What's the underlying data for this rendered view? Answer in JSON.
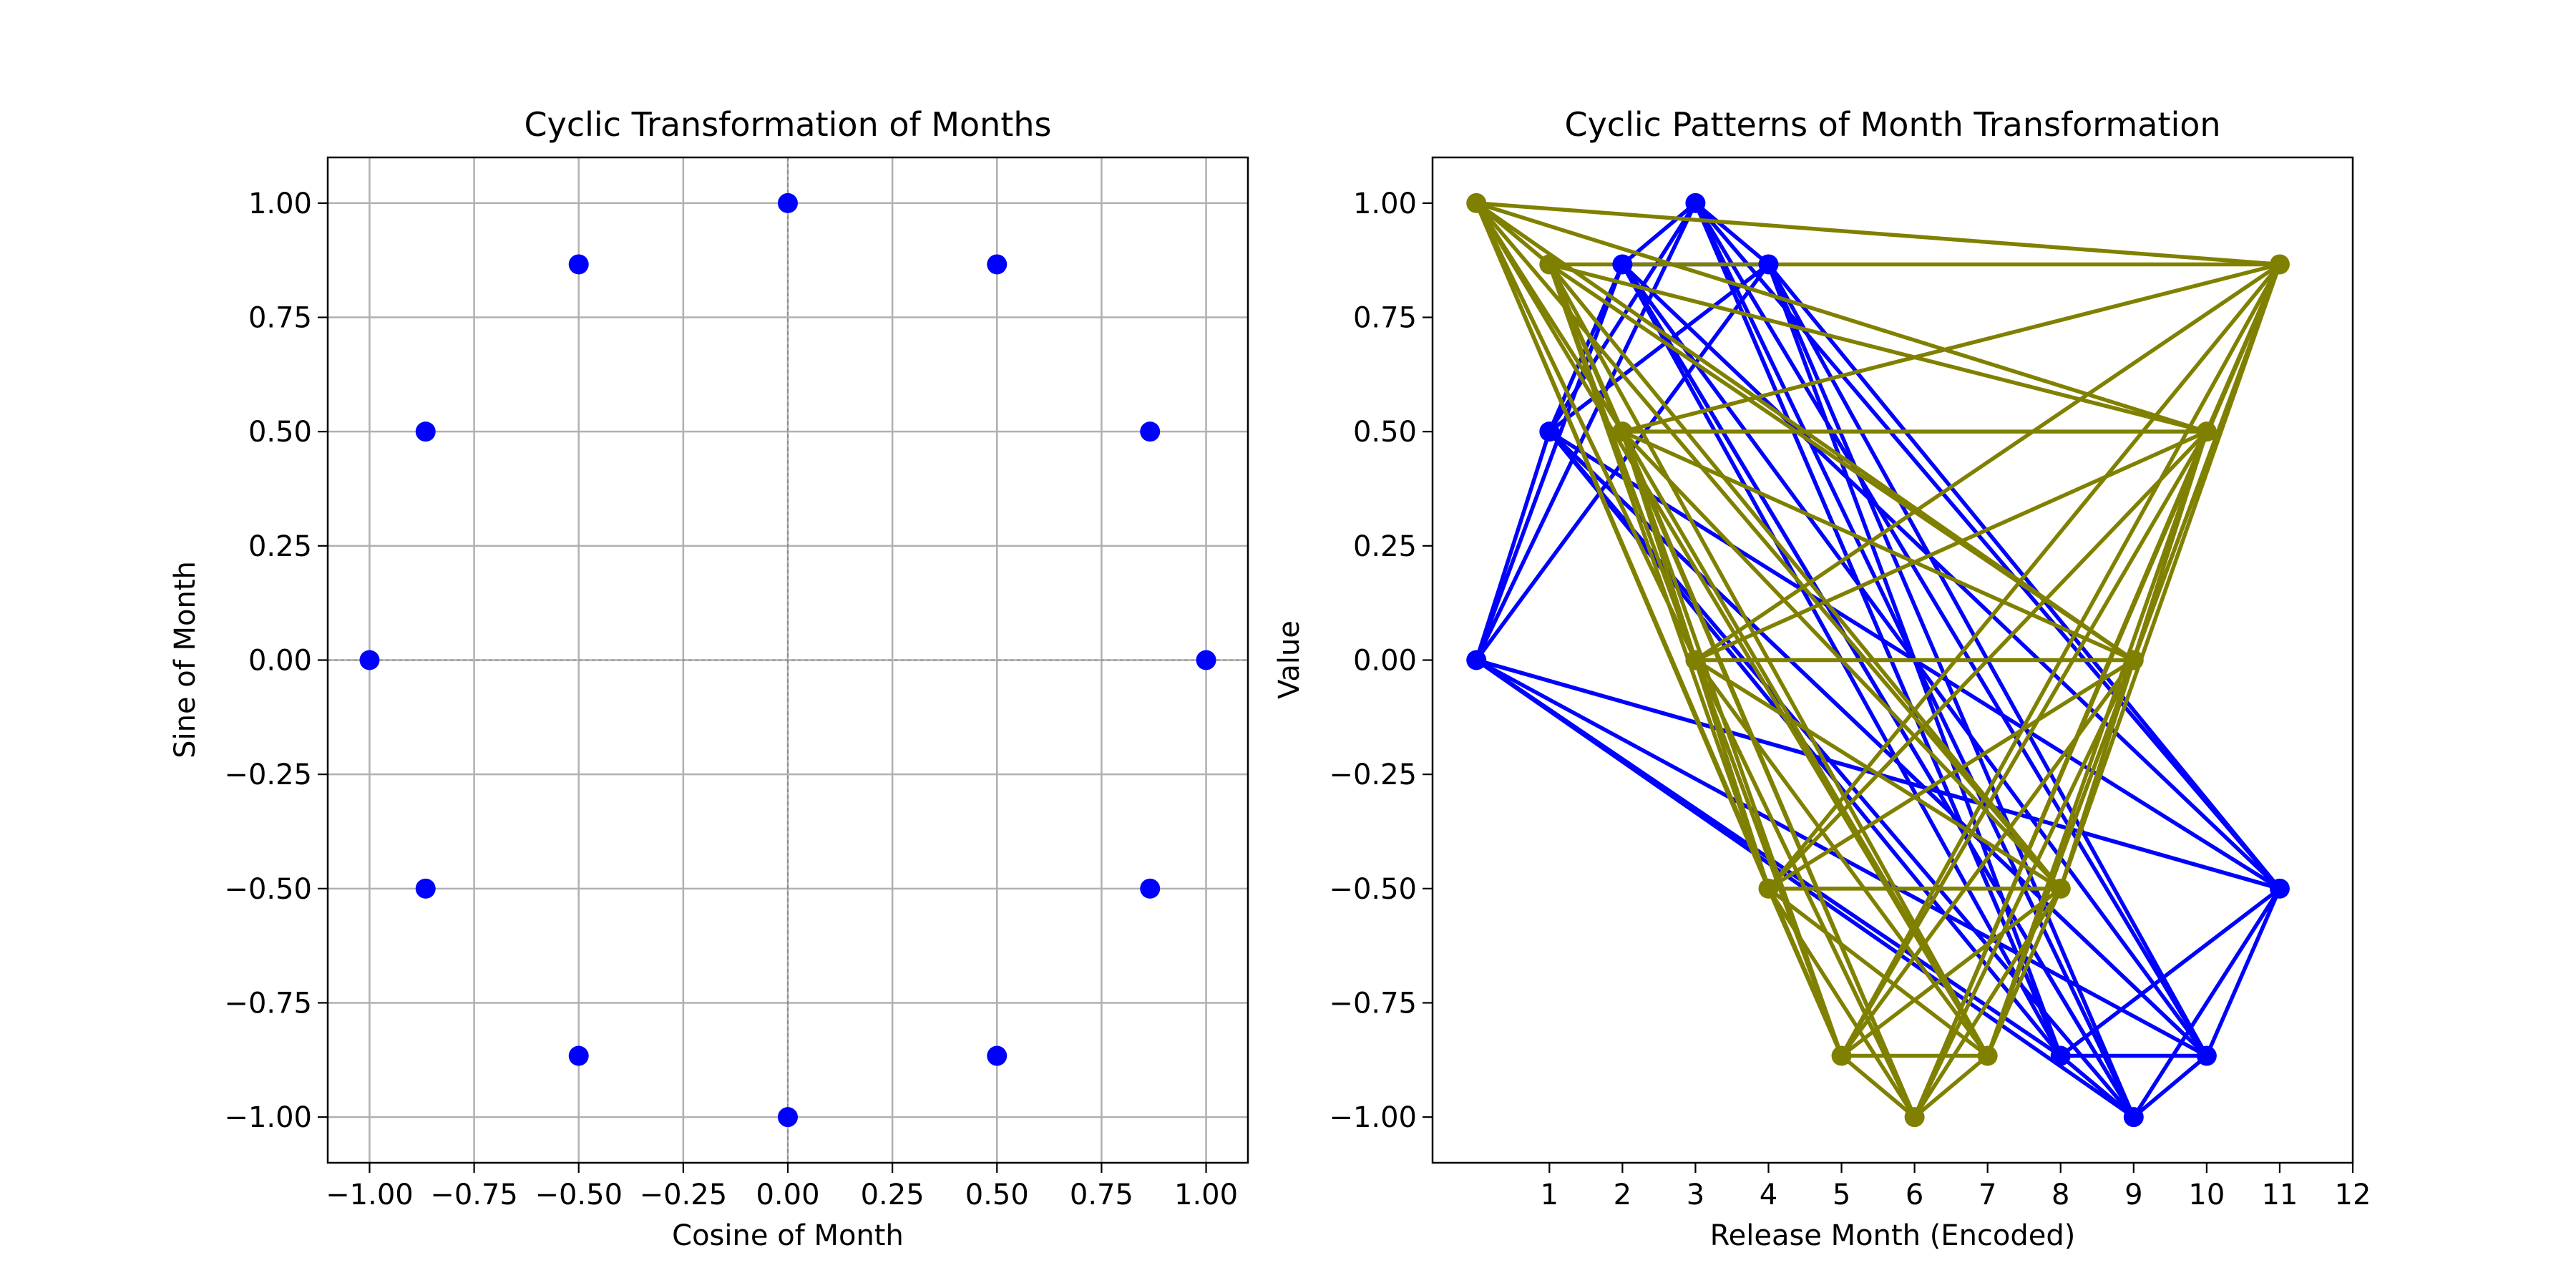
{
  "chart_data": [
    {
      "type": "scatter",
      "title": "Cyclic Transformation of Months",
      "xlabel": "Cosine of Month",
      "ylabel": "Sine of Month",
      "xlim": [
        -1.1,
        1.1
      ],
      "ylim": [
        -1.1,
        1.1
      ],
      "xticks": [
        -1.0,
        -0.75,
        -0.5,
        -0.25,
        0.0,
        0.25,
        0.5,
        0.75,
        1.0
      ],
      "xtick_labels": [
        "−1.00",
        "−0.75",
        "−0.50",
        "−0.25",
        "0.00",
        "0.25",
        "0.50",
        "0.75",
        "1.00"
      ],
      "yticks": [
        1.0,
        0.75,
        0.5,
        0.25,
        0.0,
        -0.25,
        -0.5,
        -0.75,
        -1.0
      ],
      "ytick_labels": [
        "1.00",
        "0.75",
        "0.50",
        "0.25",
        "0.00",
        "−0.25",
        "−0.50",
        "−0.75",
        "−1.00"
      ],
      "grid": true,
      "reference_lines": {
        "x": 0,
        "y": 0
      },
      "color": "#0000ff",
      "points": [
        {
          "x": 1.0,
          "y": 0.0
        },
        {
          "x": 0.866,
          "y": 0.5
        },
        {
          "x": 0.5,
          "y": 0.866
        },
        {
          "x": 0.0,
          "y": 1.0
        },
        {
          "x": -0.5,
          "y": 0.866
        },
        {
          "x": -0.866,
          "y": 0.5
        },
        {
          "x": -1.0,
          "y": 0.0
        },
        {
          "x": -0.866,
          "y": -0.5
        },
        {
          "x": -0.5,
          "y": -0.866
        },
        {
          "x": 0.0,
          "y": -1.0
        },
        {
          "x": 0.5,
          "y": -0.866
        },
        {
          "x": 0.866,
          "y": -0.5
        }
      ]
    },
    {
      "type": "line",
      "title": "Cyclic Patterns of Month Transformation",
      "xlabel": "Release Month (Encoded)",
      "ylabel": "Value",
      "xlim": [
        -0.6,
        12
      ],
      "ylim": [
        -1.1,
        1.1
      ],
      "xticks": [
        1,
        2,
        3,
        4,
        5,
        6,
        7,
        8,
        9,
        10,
        11,
        12
      ],
      "xtick_labels": [
        "1",
        "2",
        "3",
        "4",
        "5",
        "6",
        "7",
        "8",
        "9",
        "10",
        "11",
        "12"
      ],
      "yticks": [
        1.0,
        0.75,
        0.5,
        0.25,
        0.0,
        -0.25,
        -0.5,
        -0.75,
        -1.0
      ],
      "ytick_labels": [
        "1.00",
        "0.75",
        "0.50",
        "0.25",
        "0.00",
        "−0.25",
        "−0.50",
        "−0.75",
        "−1.00"
      ],
      "grid": false,
      "series": [
        {
          "color": "#0000ff",
          "points": [
            [
              0,
              0.0
            ],
            [
              1,
              0.5
            ],
            [
              2,
              0.866
            ],
            [
              3,
              1.0
            ],
            [
              4,
              0.866
            ],
            [
              8,
              -0.866
            ],
            [
              9,
              -1.0
            ],
            [
              10,
              -0.866
            ],
            [
              11,
              -0.5
            ]
          ],
          "segments": [
            [
              0,
              1
            ],
            [
              0,
              2
            ],
            [
              0,
              3
            ],
            [
              0,
              4
            ],
            [
              0,
              5
            ],
            [
              0,
              6
            ],
            [
              0,
              7
            ],
            [
              0,
              8
            ],
            [
              1,
              2
            ],
            [
              1,
              3
            ],
            [
              1,
              4
            ],
            [
              1,
              5
            ],
            [
              1,
              6
            ],
            [
              1,
              7
            ],
            [
              1,
              8
            ],
            [
              2,
              3
            ],
            [
              2,
              4
            ],
            [
              2,
              5
            ],
            [
              2,
              6
            ],
            [
              2,
              7
            ],
            [
              2,
              8
            ],
            [
              3,
              4
            ],
            [
              3,
              5
            ],
            [
              3,
              6
            ],
            [
              3,
              7
            ],
            [
              3,
              8
            ],
            [
              4,
              5
            ],
            [
              4,
              6
            ],
            [
              4,
              7
            ],
            [
              4,
              8
            ],
            [
              5,
              6
            ],
            [
              5,
              7
            ],
            [
              5,
              8
            ],
            [
              6,
              7
            ],
            [
              6,
              8
            ],
            [
              7,
              8
            ],
            [
              0,
              8
            ],
            [
              1,
              7
            ],
            [
              2,
              6
            ],
            [
              3,
              5
            ]
          ]
        },
        {
          "color": "#808000",
          "points": [
            [
              0,
              1.0
            ],
            [
              1,
              0.866
            ],
            [
              2,
              0.5
            ],
            [
              3,
              0.0
            ],
            [
              4,
              -0.5
            ],
            [
              5,
              -0.866
            ],
            [
              6,
              -1.0
            ],
            [
              7,
              -0.866
            ],
            [
              8,
              -0.5
            ],
            [
              9,
              0.0
            ],
            [
              10,
              0.5
            ],
            [
              11,
              0.866
            ]
          ],
          "segments": [
            [
              0,
              1
            ],
            [
              0,
              2
            ],
            [
              0,
              3
            ],
            [
              0,
              4
            ],
            [
              0,
              5
            ],
            [
              0,
              6
            ],
            [
              0,
              7
            ],
            [
              0,
              8
            ],
            [
              0,
              9
            ],
            [
              0,
              10
            ],
            [
              0,
              11
            ],
            [
              1,
              2
            ],
            [
              1,
              3
            ],
            [
              1,
              4
            ],
            [
              1,
              5
            ],
            [
              1,
              6
            ],
            [
              1,
              7
            ],
            [
              1,
              8
            ],
            [
              1,
              9
            ],
            [
              1,
              10
            ],
            [
              1,
              11
            ],
            [
              2,
              3
            ],
            [
              2,
              4
            ],
            [
              2,
              5
            ],
            [
              2,
              6
            ],
            [
              2,
              7
            ],
            [
              2,
              8
            ],
            [
              2,
              9
            ],
            [
              2,
              10
            ],
            [
              2,
              11
            ],
            [
              3,
              4
            ],
            [
              3,
              5
            ],
            [
              3,
              6
            ],
            [
              3,
              7
            ],
            [
              3,
              8
            ],
            [
              3,
              9
            ],
            [
              3,
              10
            ],
            [
              3,
              11
            ],
            [
              4,
              5
            ],
            [
              4,
              6
            ],
            [
              4,
              7
            ],
            [
              4,
              8
            ],
            [
              4,
              9
            ],
            [
              4,
              10
            ],
            [
              4,
              11
            ],
            [
              5,
              6
            ],
            [
              5,
              7
            ],
            [
              5,
              8
            ],
            [
              5,
              9
            ],
            [
              5,
              10
            ],
            [
              5,
              11
            ],
            [
              6,
              7
            ],
            [
              6,
              8
            ],
            [
              6,
              9
            ],
            [
              6,
              10
            ],
            [
              6,
              11
            ],
            [
              7,
              8
            ],
            [
              7,
              9
            ],
            [
              7,
              10
            ],
            [
              7,
              11
            ],
            [
              8,
              9
            ],
            [
              8,
              10
            ],
            [
              8,
              11
            ],
            [
              9,
              10
            ],
            [
              9,
              11
            ],
            [
              10,
              11
            ]
          ]
        }
      ]
    }
  ]
}
